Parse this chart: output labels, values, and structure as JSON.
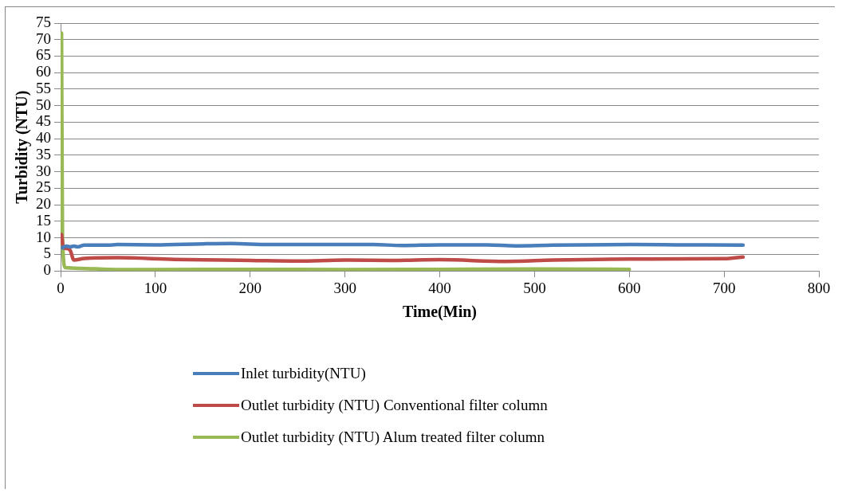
{
  "chart_data": {
    "type": "line",
    "xlabel": "Time(Min)",
    "ylabel": "Turbidity (NTU)",
    "xlim": [
      0,
      800
    ],
    "xticks": [
      0,
      100,
      200,
      300,
      400,
      500,
      600,
      700,
      800
    ],
    "ylim": [
      0,
      75
    ],
    "yticks": [
      0,
      5,
      10,
      15,
      20,
      25,
      30,
      35,
      40,
      45,
      50,
      55,
      60,
      65,
      70,
      75
    ],
    "grid": "y",
    "legend": "bottom",
    "marker": "none",
    "line_style": "solid",
    "series": [
      {
        "name": "Inlet turbidity(NTU)",
        "color": "#4a7ebb",
        "x": [
          2,
          6,
          10,
          14,
          18,
          25,
          50,
          60,
          100,
          150,
          180,
          220,
          300,
          330,
          360,
          400,
          450,
          480,
          520,
          600,
          650,
          720
        ],
        "values": [
          7,
          7.5,
          7.3,
          7.5,
          7.3,
          7.8,
          7.8,
          8,
          7.9,
          8.2,
          8.3,
          8,
          8,
          8,
          7.7,
          7.9,
          7.9,
          7.6,
          7.8,
          8,
          7.9,
          7.8
        ]
      },
      {
        "name": "Outlet turbidity (NTU) Conventional filter column",
        "color": "#be4b48",
        "x": [
          1,
          3,
          6,
          10,
          14,
          25,
          60,
          120,
          200,
          250,
          300,
          350,
          400,
          470,
          520,
          600,
          700,
          720
        ],
        "values": [
          11,
          7,
          6.8,
          6.3,
          3.3,
          3.8,
          4,
          3.5,
          3.2,
          3,
          3.3,
          3.2,
          3.4,
          2.9,
          3.3,
          3.6,
          3.7,
          4.2
        ]
      },
      {
        "name": "Outlet turbidity (NTU) Alum treated filter column",
        "color": "#98b954",
        "x": [
          1,
          2,
          5,
          20,
          50,
          100,
          200,
          300,
          400,
          500,
          600
        ],
        "values": [
          72,
          10,
          1,
          0.8,
          0.5,
          0.4,
          0.5,
          0.4,
          0.5,
          0.6,
          0.5
        ]
      }
    ]
  }
}
